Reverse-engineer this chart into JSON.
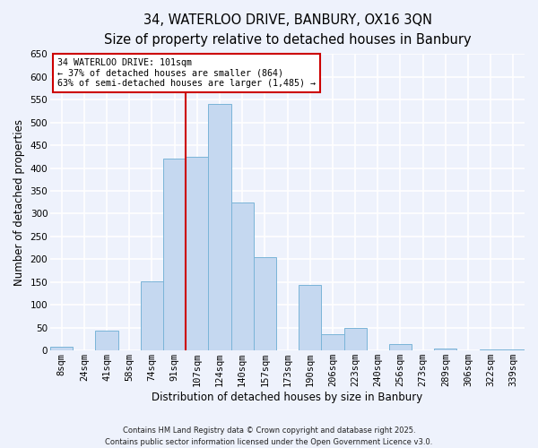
{
  "title": "34, WATERLOO DRIVE, BANBURY, OX16 3QN",
  "subtitle": "Size of property relative to detached houses in Banbury",
  "xlabel": "Distribution of detached houses by size in Banbury",
  "ylabel": "Number of detached properties",
  "bar_labels": [
    "8sqm",
    "24sqm",
    "41sqm",
    "58sqm",
    "74sqm",
    "91sqm",
    "107sqm",
    "124sqm",
    "140sqm",
    "157sqm",
    "173sqm",
    "190sqm",
    "206sqm",
    "223sqm",
    "240sqm",
    "256sqm",
    "273sqm",
    "289sqm",
    "306sqm",
    "322sqm",
    "339sqm"
  ],
  "bar_values": [
    8,
    0,
    44,
    0,
    152,
    420,
    425,
    541,
    325,
    205,
    0,
    143,
    35,
    49,
    0,
    14,
    0,
    5,
    0,
    3,
    3
  ],
  "bar_color": "#c5d8f0",
  "bar_edge_color": "#7ab4d8",
  "ylim": [
    0,
    650
  ],
  "yticks": [
    0,
    50,
    100,
    150,
    200,
    250,
    300,
    350,
    400,
    450,
    500,
    550,
    600,
    650
  ],
  "vline_index": 6,
  "vline_color": "#cc0000",
  "annotation_line1": "34 WATERLOO DRIVE: 101sqm",
  "annotation_line2": "← 37% of detached houses are smaller (864)",
  "annotation_line3": "63% of semi-detached houses are larger (1,485) →",
  "footnote1": "Contains HM Land Registry data © Crown copyright and database right 2025.",
  "footnote2": "Contains public sector information licensed under the Open Government Licence v3.0.",
  "bg_color": "#eef2fc",
  "grid_color": "#ffffff",
  "title_fontsize": 10.5,
  "subtitle_fontsize": 9.5,
  "axis_label_fontsize": 8.5,
  "tick_fontsize": 7.5,
  "footnote_fontsize": 6.0
}
